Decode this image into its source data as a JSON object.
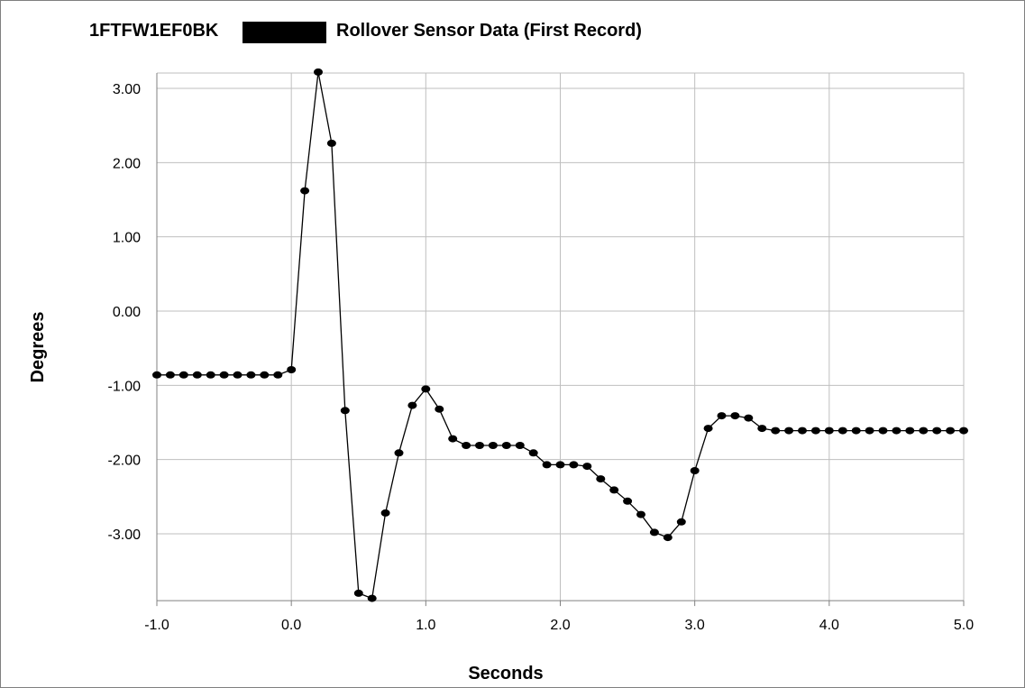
{
  "chart_data": {
    "type": "line",
    "title_prefix": "1FTFW1EF0BK",
    "title": "Rollover Sensor Data (First Record)",
    "xlabel": "Seconds",
    "ylabel": "Degrees",
    "xlim": [
      -1.0,
      5.0
    ],
    "ylim": [
      -3.9,
      3.2
    ],
    "x_ticks": [
      -1.0,
      0.0,
      1.0,
      2.0,
      3.0,
      4.0,
      5.0
    ],
    "x_tick_labels": [
      "-1.0",
      "0.0",
      "1.0",
      "2.0",
      "3.0",
      "4.0",
      "5.0"
    ],
    "y_ticks": [
      3.0,
      2.0,
      1.0,
      0.0,
      -1.0,
      -2.0,
      -3.0
    ],
    "y_tick_labels": [
      "3.00",
      "2.00",
      "1.00",
      "0.00",
      "-1.00",
      "-2.00",
      "-3.00"
    ],
    "grid": true,
    "legend": "none",
    "redaction_box": true,
    "series": [
      {
        "x": [
          -1.0,
          -0.9,
          -0.8,
          -0.7,
          -0.6,
          -0.5,
          -0.4,
          -0.3,
          -0.2,
          -0.1,
          0.0,
          0.1,
          0.2,
          0.3,
          0.4,
          0.5,
          0.6,
          0.7,
          0.8,
          0.9,
          1.0,
          1.1,
          1.2,
          1.3,
          1.4,
          1.5,
          1.6,
          1.7,
          1.8,
          1.9,
          2.0,
          2.1,
          2.2,
          2.3,
          2.4,
          2.5,
          2.6,
          2.7,
          2.8,
          2.9,
          3.0,
          3.1,
          3.2,
          3.3,
          3.4,
          3.5,
          3.6,
          3.7,
          3.8,
          3.9,
          4.0,
          4.1,
          4.2,
          4.3,
          4.4,
          4.5,
          4.6,
          4.7,
          4.8,
          4.9,
          5.0
        ],
        "values": [
          -0.86,
          -0.86,
          -0.86,
          -0.86,
          -0.86,
          -0.86,
          -0.86,
          -0.86,
          -0.86,
          -0.86,
          -0.79,
          1.62,
          3.22,
          2.26,
          -1.34,
          -3.8,
          -3.87,
          -2.72,
          -1.91,
          -1.27,
          -1.05,
          -1.32,
          -1.72,
          -1.81,
          -1.81,
          -1.81,
          -1.81,
          -1.81,
          -1.91,
          -2.07,
          -2.07,
          -2.07,
          -2.09,
          -2.26,
          -2.41,
          -2.56,
          -2.74,
          -2.98,
          -3.05,
          -2.84,
          -2.15,
          -1.58,
          -1.41,
          -1.41,
          -1.44,
          -1.58,
          -1.61,
          -1.61,
          -1.61,
          -1.61,
          -1.61,
          -1.61,
          -1.61,
          -1.61,
          -1.61,
          -1.61,
          -1.61,
          -1.61,
          -1.61,
          -1.61,
          -1.61
        ]
      }
    ],
    "colors": {
      "line": "#000000",
      "marker": "#000000",
      "grid": "#bfbfbf",
      "axis": "#808080",
      "frame": "#7f7f7f"
    }
  }
}
